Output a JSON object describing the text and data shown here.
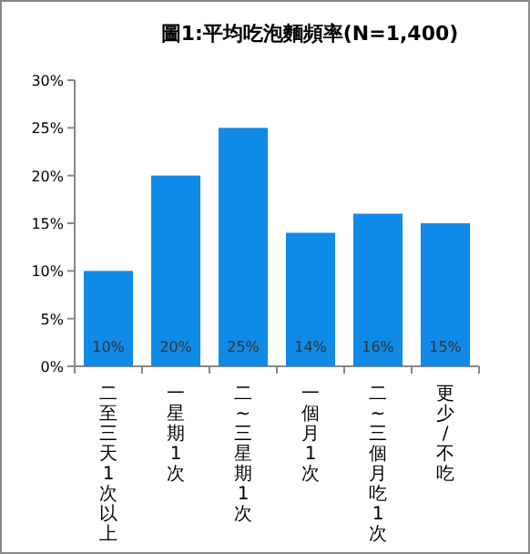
{
  "chart_data": {
    "type": "bar",
    "title": "圖1:平均吃泡麵頻率(N=1,400)",
    "categories": [
      "二至三天1次以上",
      "一星期1次",
      "二~三星期1次",
      "一個月1次",
      "二~三個月吃1次",
      "更少/不吃"
    ],
    "values": [
      10,
      20,
      25,
      14,
      16,
      15
    ],
    "value_labels": [
      "10%",
      "20%",
      "25%",
      "14%",
      "16%",
      "15%"
    ],
    "color": "#0f8ae6",
    "ylim": [
      0,
      30
    ],
    "yticks": [
      {
        "value": 0,
        "label": "0%"
      },
      {
        "value": 5,
        "label": "5%"
      },
      {
        "value": 10,
        "label": "10%"
      },
      {
        "value": 15,
        "label": "15%"
      },
      {
        "value": 20,
        "label": "20%"
      },
      {
        "value": 25,
        "label": "25%"
      },
      {
        "value": 30,
        "label": "30%"
      }
    ]
  }
}
